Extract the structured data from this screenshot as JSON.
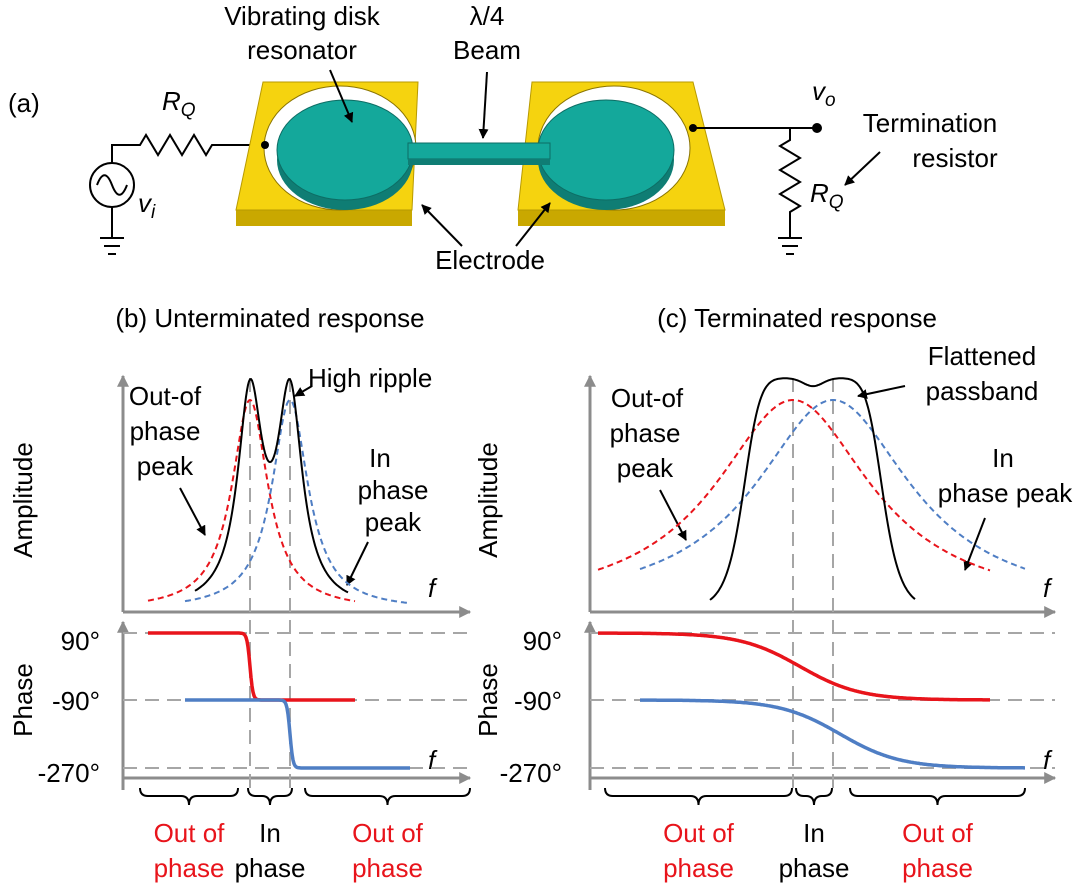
{
  "panel_a": {
    "label": "(a)",
    "source_resistor": {
      "symbol": "R",
      "subscript": "Q"
    },
    "source_voltage": {
      "symbol": "v",
      "subscript": "i"
    },
    "resonator_label": [
      "Vibrating disk",
      "resonator"
    ],
    "beam_label": [
      "λ/4",
      "Beam"
    ],
    "output_voltage": {
      "symbol": "v",
      "subscript": "o"
    },
    "termination_label": [
      "Termination",
      "resistor"
    ],
    "termination_resistor": {
      "symbol": "R",
      "subscript": "Q"
    },
    "electrode_label": "Electrode"
  },
  "panel_b": {
    "title": "(b) Unterminated response",
    "amplitude_axis": "Amplitude",
    "phase_axis": "Phase",
    "freq_label_amplitude": "f",
    "freq_label_phase": "f",
    "phase_ticks": [
      "90°",
      "-90°",
      "-270°"
    ],
    "out_of_phase_peak": [
      "Out-of",
      "phase",
      "peak"
    ],
    "in_phase_peak": [
      "In",
      "phase",
      "peak"
    ],
    "ripple_label": "High ripple",
    "regions": [
      [
        "Out of",
        "phase"
      ],
      [
        "In",
        "phase"
      ],
      [
        "Out of",
        "phase"
      ]
    ]
  },
  "panel_c": {
    "title": "(c) Terminated response",
    "amplitude_axis": "Amplitude",
    "phase_axis": "Phase",
    "freq_label_amplitude": "f",
    "freq_label_phase": "f",
    "phase_ticks": [
      "90°",
      "-90°",
      "-270°"
    ],
    "out_of_phase_peak": [
      "Out-of",
      "phase",
      "peak"
    ],
    "in_phase_peak": [
      "In",
      "phase peak"
    ],
    "passband_label": [
      "Flattened",
      "passband"
    ],
    "regions": [
      [
        "Out of",
        "phase"
      ],
      [
        "In",
        "phase"
      ],
      [
        "Out of",
        "phase"
      ]
    ]
  }
}
